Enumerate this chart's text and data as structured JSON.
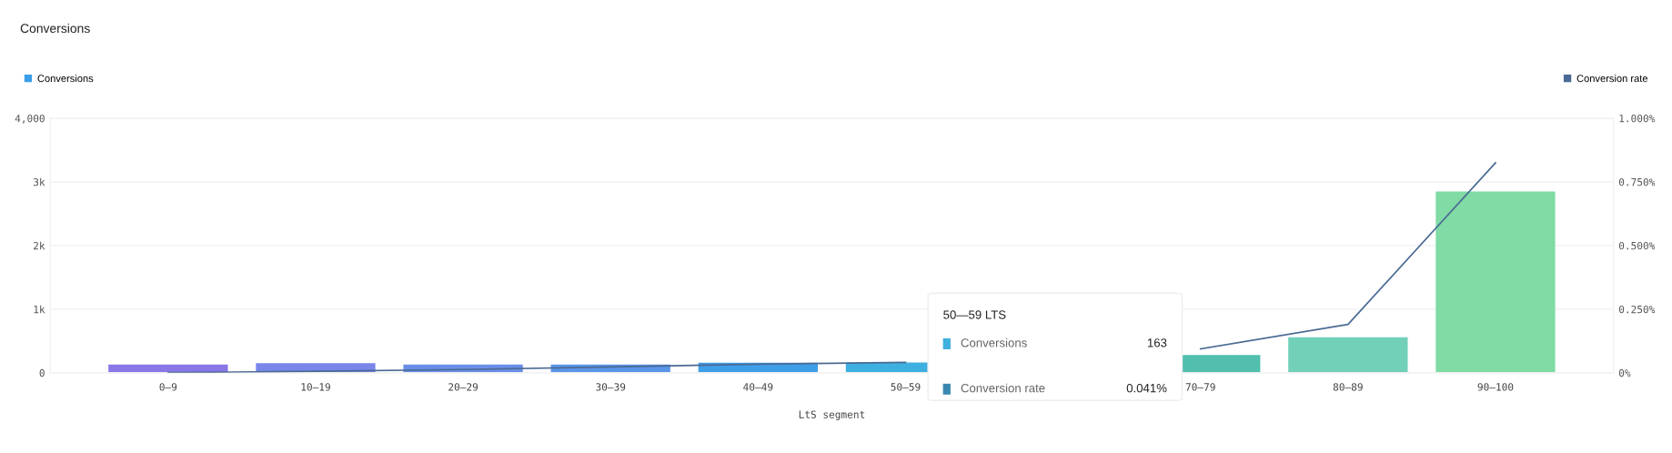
{
  "chart_data": {
    "type": "bar",
    "title": "Conversions",
    "xlabel": "LtS segment",
    "categories": [
      "0–9",
      "10–19",
      "20–29",
      "30–39",
      "40–49",
      "50–59",
      null,
      "70–79",
      "80–89",
      "90–100"
    ],
    "series": [
      {
        "name": "Conversions",
        "color": "#3b9ee8",
        "colors": [
          "#8a76e6",
          "#7a86ea",
          "#6a8ee8",
          "#5a95e8",
          "#3f9ee8",
          "#3eb0e0",
          "#48b8c8",
          "#52bfae",
          "#72d0b8",
          "#80dba5"
        ],
        "values": [
          130,
          150,
          130,
          130,
          160,
          163,
          null,
          280,
          560,
          2850
        ]
      },
      {
        "name": "Conversion rate",
        "type": "line",
        "axis": "y2",
        "color": "#4a6a94",
        "values": [
          0.001,
          0.006,
          0.013,
          0.023,
          0.034,
          0.041,
          null,
          0.094,
          0.19,
          0.825
        ]
      }
    ],
    "ylim": [
      0,
      4000
    ],
    "yticks": [
      0,
      {
        "value": 1000,
        "label": "1k"
      },
      {
        "value": 2000,
        "label": "2k"
      },
      {
        "value": 3000,
        "label": "3k"
      },
      {
        "value": 4000,
        "label": "4,000"
      }
    ],
    "y2lim": [
      0,
      1.0
    ],
    "y2ticks": [
      {
        "value": 0,
        "label": "0%"
      },
      {
        "value": 0.25,
        "label": "0.250%"
      },
      {
        "value": 0.5,
        "label": "0.500%"
      },
      {
        "value": 0.75,
        "label": "0.750%"
      },
      {
        "value": 1.0,
        "label": "1.000%"
      }
    ],
    "grid": "y",
    "legend": "top",
    "marker": "none",
    "line_style": "solid",
    "annotations": [
      "50—59 LTS",
      "Conversions",
      "163",
      "Conversion rate",
      "0.041%"
    ]
  }
}
